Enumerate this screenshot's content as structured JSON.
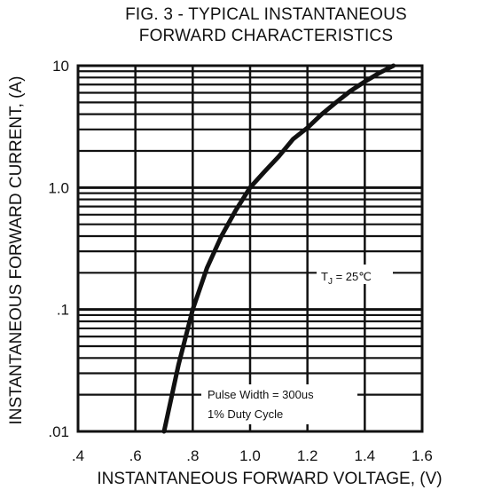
{
  "chart_data": {
    "type": "line",
    "title": "FIG. 3 - TYPICAL INSTANTANEOUS",
    "subtitle": "FORWARD CHARACTERISTICS",
    "xlabel": "INSTANTANEOUS FORWARD VOLTAGE, (V)",
    "ylabel": "INSTANTANEOUS FORWARD CURRENT, (A)",
    "xlim": [
      0.4,
      1.6
    ],
    "ylim": [
      0.01,
      10
    ],
    "yscale": "log",
    "grid": true,
    "x_ticks": [
      0.4,
      0.6,
      0.8,
      1.0,
      1.2,
      1.4,
      1.6
    ],
    "x_tick_labels": [
      ".4",
      ".6",
      ".8",
      "1.0",
      "1.2",
      "1.4",
      "1.6"
    ],
    "y_ticks": [
      0.01,
      0.1,
      1.0,
      10
    ],
    "y_tick_labels": [
      ".01",
      ".1",
      "1.0",
      "10"
    ],
    "series": [
      {
        "x": [
          0.7,
          0.75,
          0.8,
          0.85,
          0.9,
          0.95,
          1.0,
          1.05,
          1.1,
          1.15,
          1.2,
          1.25,
          1.3,
          1.35,
          1.4,
          1.45,
          1.5
        ],
        "y": [
          0.01,
          0.035,
          0.1,
          0.22,
          0.4,
          0.65,
          1.0,
          1.35,
          1.8,
          2.5,
          3.1,
          4.0,
          5.0,
          6.2,
          7.4,
          8.7,
          10.0
        ]
      }
    ],
    "annotations": {
      "tj_prefix": "T",
      "tj_sub": "J",
      "tj_value": " = 25℃",
      "pulse": "Pulse Width = 300us",
      "duty": "1% Duty Cycle"
    }
  }
}
